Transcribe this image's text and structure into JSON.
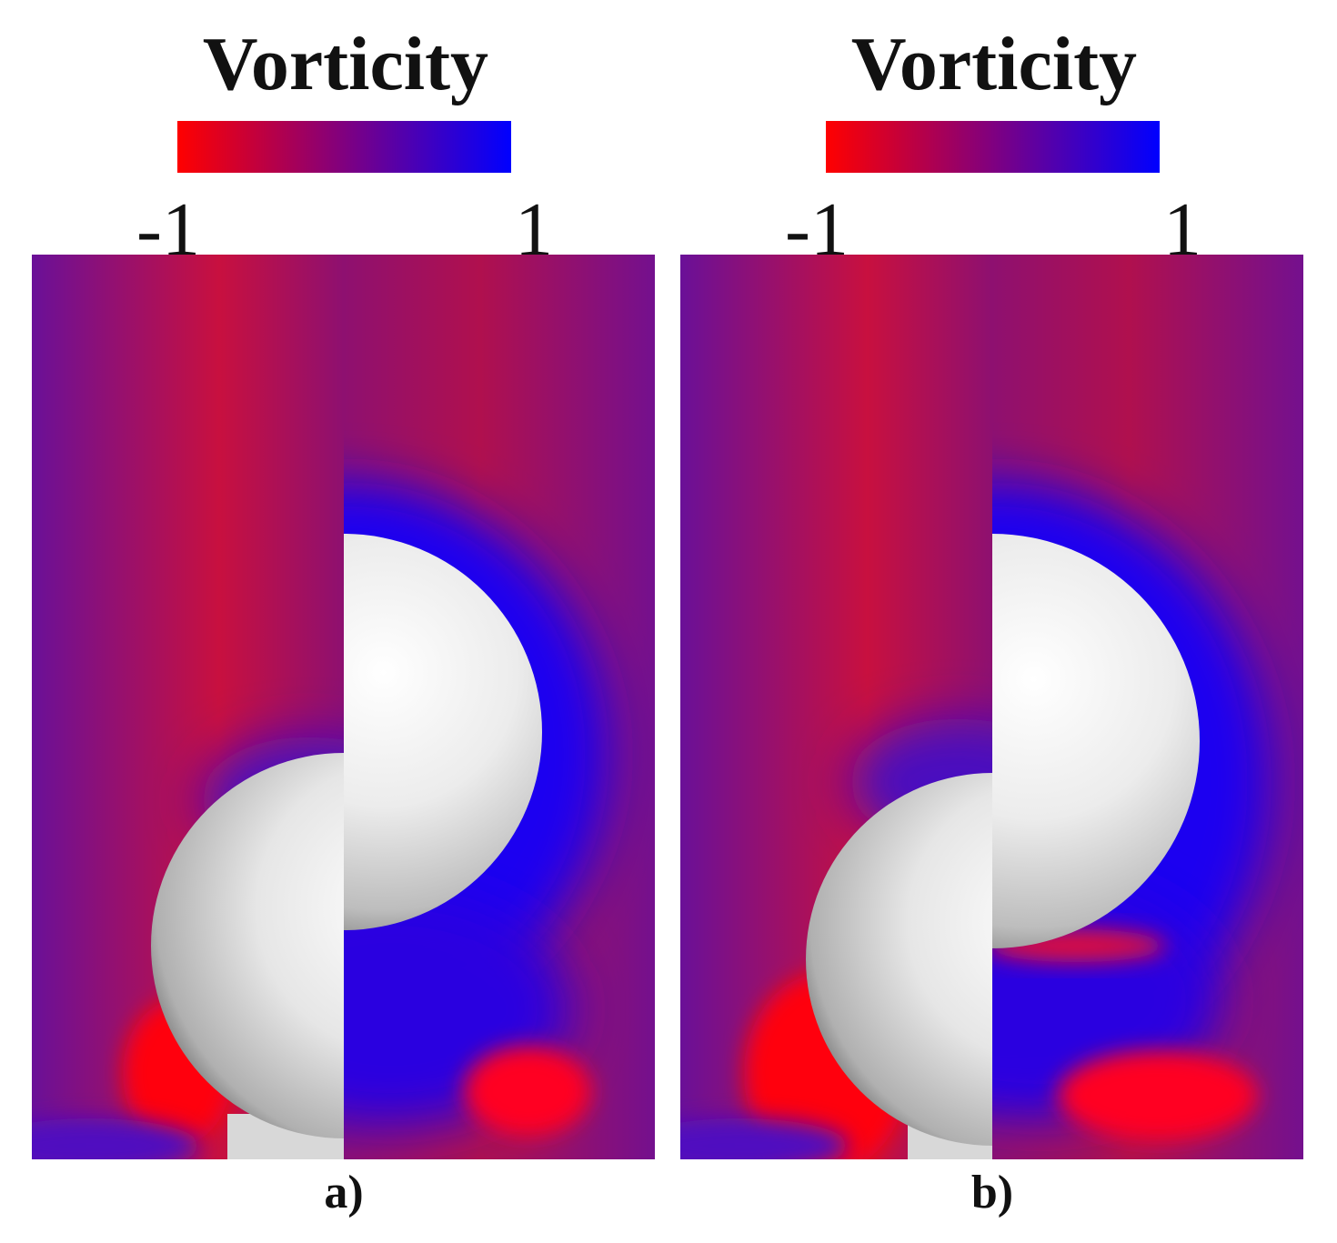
{
  "panels": [
    {
      "title": "Vorticity",
      "colorbar": {
        "min": -1,
        "max": 1,
        "colors": [
          "#ff0000",
          "#0000ff"
        ]
      },
      "caption": "a)"
    },
    {
      "title": "Vorticity",
      "colorbar": {
        "min": -1,
        "max": 1,
        "colors": [
          "#ff0000",
          "#0000ff"
        ]
      },
      "caption": "b)"
    }
  ]
}
